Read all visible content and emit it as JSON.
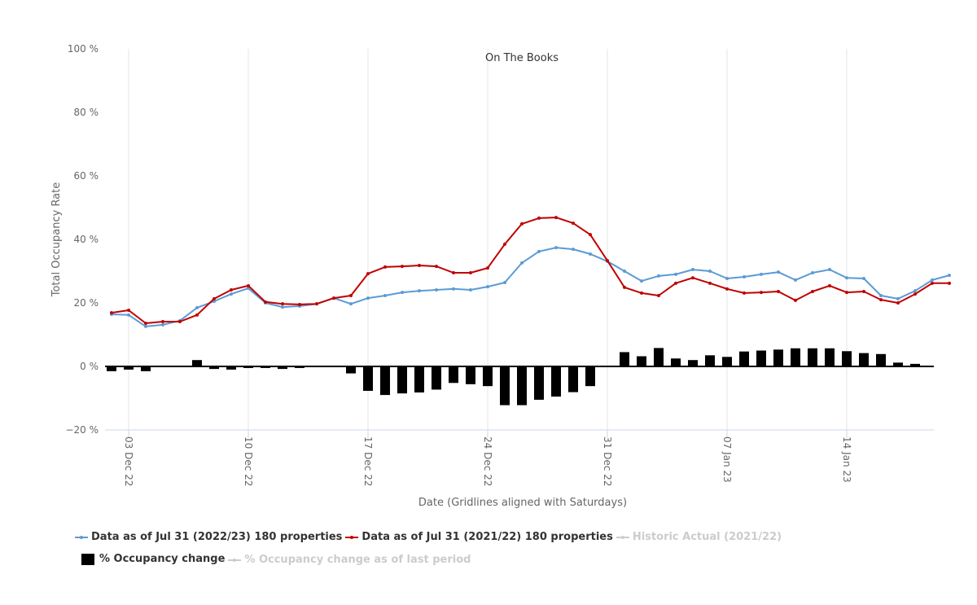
{
  "chart_data": {
    "type": "line",
    "title": "On The Books",
    "xlabel": "Date (Gridlines aligned with Saturdays)",
    "ylabel": "Total Occupancy Rate",
    "ylim": [
      -20,
      100
    ],
    "y_ticks": [
      {
        "value": -20,
        "label": "−20 %"
      },
      {
        "value": 0,
        "label": "0 %"
      },
      {
        "value": 20,
        "label": "20 %"
      },
      {
        "value": 40,
        "label": "40 %"
      },
      {
        "value": 60,
        "label": "60 %"
      },
      {
        "value": 80,
        "label": "80 %"
      },
      {
        "value": 100,
        "label": "100 %"
      }
    ],
    "x_start_date": "02 Dec 22",
    "x_ticks": [
      {
        "index": 1,
        "label": "03 Dec 22"
      },
      {
        "index": 8,
        "label": "10 Dec 22"
      },
      {
        "index": 15,
        "label": "17 Dec 22"
      },
      {
        "index": 22,
        "label": "24 Dec 22"
      },
      {
        "index": 29,
        "label": "31 Dec 22"
      },
      {
        "index": 36,
        "label": "07 Jan 23"
      },
      {
        "index": 43,
        "label": "14 Jan 23"
      }
    ],
    "grid": "vertical gridlines on Saturdays",
    "legend_position": "bottom",
    "series": [
      {
        "name": "Data as of Jul 31 (2022/23) 180 properties",
        "type": "line",
        "color": "#5b9bd5",
        "visible": true,
        "values": [
          16.4,
          16.2,
          12.6,
          13.1,
          14.4,
          18.5,
          20.5,
          22.8,
          24.6,
          20.0,
          18.7,
          19.0,
          19.7,
          21.5,
          19.7,
          21.5,
          22.3,
          23.3,
          23.8,
          24.1,
          24.4,
          24.1,
          25.1,
          26.4,
          32.6,
          36.2,
          37.4,
          36.9,
          35.4,
          33.1,
          30.0,
          26.9,
          28.5,
          29.0,
          30.5,
          30.0,
          27.7,
          28.2,
          29.0,
          29.7,
          27.2,
          29.5,
          30.5,
          27.9,
          27.7,
          22.3,
          21.3,
          23.8,
          27.2,
          28.7
        ]
      },
      {
        "name": "Data as of Jul 31 (2021/22) 180 properties",
        "type": "line",
        "color": "#c00000",
        "visible": true,
        "values": [
          16.9,
          17.7,
          13.6,
          14.1,
          14.1,
          16.2,
          21.3,
          24.1,
          25.4,
          20.3,
          19.7,
          19.5,
          19.7,
          21.5,
          22.3,
          29.2,
          31.3,
          31.5,
          31.8,
          31.5,
          29.5,
          29.5,
          31.0,
          38.5,
          44.9,
          46.7,
          46.9,
          45.1,
          41.5,
          33.3,
          24.9,
          23.1,
          22.3,
          26.2,
          27.9,
          26.2,
          24.4,
          23.1,
          23.3,
          23.6,
          20.8,
          23.6,
          25.4,
          23.3,
          23.6,
          21.0,
          20.0,
          22.8,
          26.2,
          26.2
        ]
      },
      {
        "name": "Historic Actual (2021/22)",
        "type": "line",
        "color": "#cccccc",
        "visible": false,
        "values": []
      },
      {
        "name": "% Occupancy change",
        "type": "bar",
        "color": "#000000",
        "visible": true,
        "values": [
          -1.5,
          -1.0,
          -1.5,
          0,
          0,
          2.0,
          -0.8,
          -1.0,
          -0.5,
          -0.5,
          -0.8,
          -0.5,
          0,
          0,
          -2.2,
          -7.7,
          -9.0,
          -8.5,
          -8.2,
          -7.3,
          -5.2,
          -5.6,
          -6.2,
          -12.2,
          -12.2,
          -10.5,
          -9.5,
          -8.1,
          -6.2,
          0,
          4.5,
          3.2,
          5.8,
          2.5,
          2.0,
          3.5,
          3.0,
          4.7,
          5.0,
          5.3,
          5.7,
          5.7,
          5.7,
          4.8,
          4.2,
          3.9,
          1.2,
          0.8,
          0,
          0
        ]
      },
      {
        "name": "% Occupancy change as of last period",
        "type": "line",
        "color": "#cccccc",
        "visible": false,
        "values": []
      }
    ]
  },
  "legend": {
    "items": [
      {
        "label": "Data as of Jul 31 (2022/23) 180 properties",
        "color": "#5b9bd5",
        "kind": "line",
        "hidden": false
      },
      {
        "label": "Data as of Jul 31 (2021/22) 180 properties",
        "color": "#c00000",
        "kind": "line",
        "hidden": false
      },
      {
        "label": "Historic Actual (2021/22)",
        "color": "#cccccc",
        "kind": "line",
        "hidden": true
      },
      {
        "label": "% Occupancy change",
        "color": "#000000",
        "kind": "box",
        "hidden": false
      },
      {
        "label": "% Occupancy change as of last period",
        "color": "#cccccc",
        "kind": "line",
        "hidden": true
      }
    ]
  }
}
